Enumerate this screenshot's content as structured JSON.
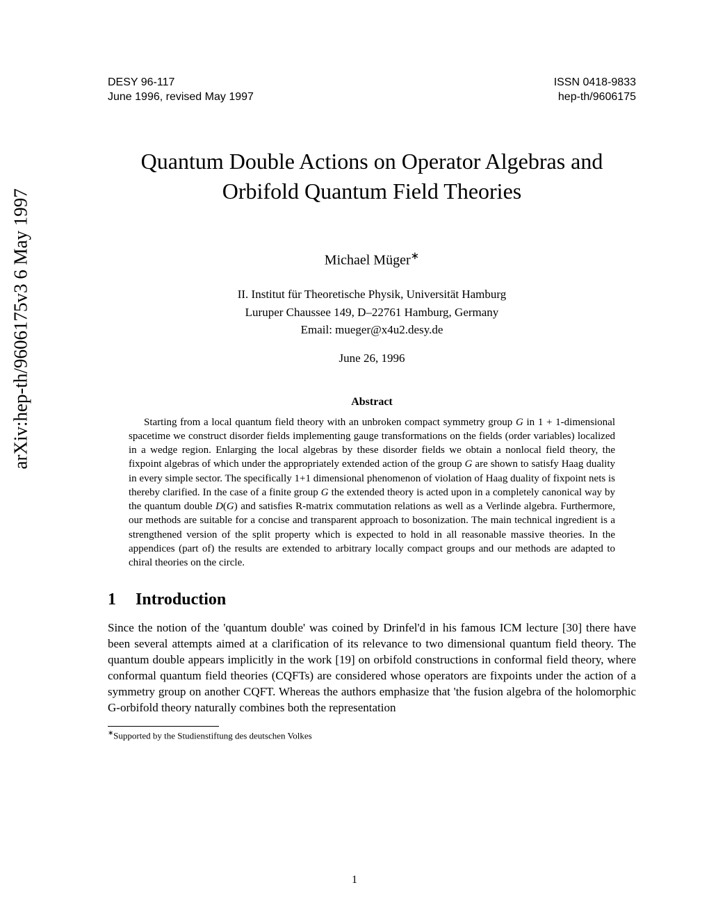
{
  "arxiv_id": "arXiv:hep-th/9606175v3  6 May 1997",
  "header": {
    "left_top": "DESY 96-117",
    "left_bottom": "June 1996, revised May 1997",
    "right_top": "ISSN 0418-9833",
    "right_bottom": "hep-th/9606175"
  },
  "title_line1": "Quantum Double Actions on Operator Algebras and",
  "title_line2": "Orbifold Quantum Field Theories",
  "author": "Michael Müger",
  "author_footnote_marker": "∗",
  "affiliation_line1": "II. Institut für Theoretische Physik, Universität Hamburg",
  "affiliation_line2": "Luruper Chaussee 149, D–22761 Hamburg, Germany",
  "affiliation_line3": "Email: mueger@x4u2.desy.de",
  "date": "June 26, 1996",
  "abstract_heading": "Abstract",
  "abstract_html": "Starting from a local quantum field theory with an unbroken compact symmetry group <span class='italic'>G</span> in 1 + 1-dimensional spacetime we construct disorder fields implementing gauge transformations on the fields (order variables) localized in a wedge region. Enlarging the local algebras by these disorder fields we obtain a nonlocal field theory, the fixpoint algebras of which under the appropriately extended action of the group <span class='italic'>G</span> are shown to satisfy Haag duality in every simple sector. The specifically 1+1 dimensional phenomenon of violation of Haag duality of fixpoint nets is thereby clarified. In the case of a finite group <span class='italic'>G</span> the extended theory is acted upon in a completely canonical way by the quantum double <span class='italic'>D</span>(<span class='italic'>G</span>) and satisfies R-matrix commutation relations as well as a Verlinde algebra. Furthermore, our methods are suitable for a concise and transparent approach to bosonization. The main technical ingredient is a strengthened version of the split property which is expected to hold in all reasonable massive theories. In the appendices (part of) the results are extended to arbitrary locally compact groups and our methods are adapted to chiral theories on the circle.",
  "section_number": "1",
  "section_title": "Introduction",
  "body_html": "Since the notion of the 'quantum double' was coined by Drinfel'd in his famous ICM lecture [30] there have been several attempts aimed at a clarification of its relevance to two dimensional quantum field theory. The quantum double appears implicitly in the work [19] on orbifold constructions in conformal field theory, where conformal quantum field theories (CQFTs) are considered whose operators are fixpoints under the action of a symmetry group on another CQFT. Whereas the authors emphasize that 'the fusion algebra of the holomorphic G-orbifold theory naturally combines both the representation",
  "footnote_marker": "∗",
  "footnote_text": "Supported by the Studienstiftung des deutschen Volkes",
  "page_number": "1"
}
